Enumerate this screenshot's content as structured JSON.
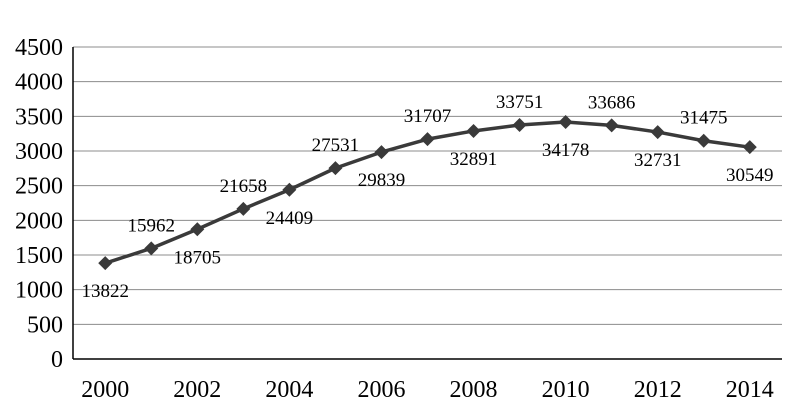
{
  "chart_data": {
    "type": "line",
    "title": "",
    "xlabel": "",
    "ylabel": "",
    "x": [
      2000,
      2001,
      2002,
      2003,
      2004,
      2005,
      2006,
      2007,
      2008,
      2009,
      2010,
      2011,
      2012,
      2013,
      2014
    ],
    "x_ticks": [
      "2000",
      "2002",
      "2004",
      "2006",
      "2008",
      "2010",
      "2012",
      "2014"
    ],
    "xlim": [
      1999.3,
      2014.7
    ],
    "ylim": [
      0,
      4500
    ],
    "y_ticks": [
      "0",
      "500",
      "1000",
      "1500",
      "2000",
      "2500",
      "3000",
      "3500",
      "4000",
      "4500"
    ],
    "grid": true,
    "legend": "none",
    "series": [
      {
        "values": [
          1382,
          1596,
          1871,
          2166,
          2441,
          2753,
          2984,
          3171,
          3289,
          3375,
          3418,
          3369,
          3273,
          3148,
          3055
        ],
        "labels": [
          "13822",
          "15962",
          "18705",
          "21658",
          "24409",
          "27531",
          "29839",
          "31707",
          "32891",
          "33751",
          "34178",
          "33686",
          "32731",
          "31475",
          "30549"
        ],
        "label_positions": [
          "below",
          "above",
          "below",
          "above",
          "below",
          "above",
          "below",
          "above",
          "below",
          "above",
          "below",
          "above",
          "below",
          "above",
          "below"
        ],
        "color": "#3a3a3a",
        "marker": "diamond"
      }
    ]
  }
}
